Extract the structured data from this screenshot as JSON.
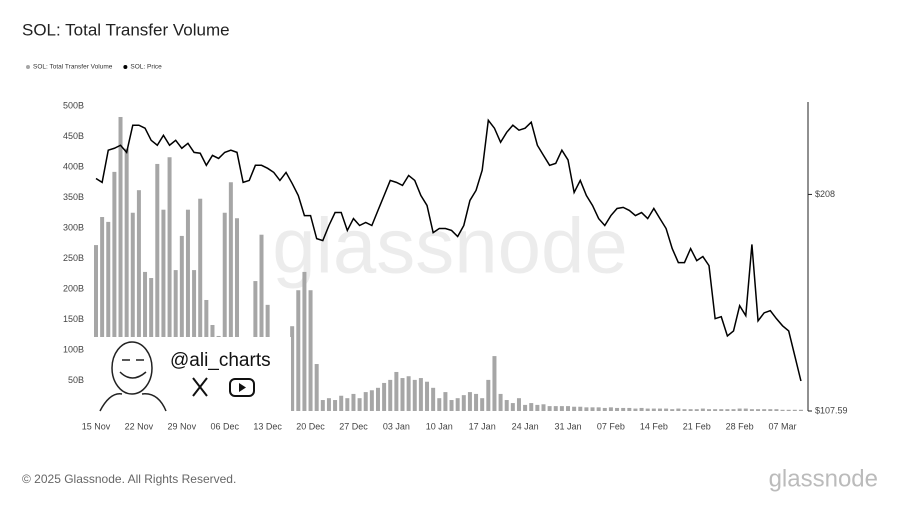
{
  "chart_data": {
    "type": "bar_line",
    "title": "SOL: Total Transfer Volume",
    "categories": [
      "15 Nov",
      null,
      null,
      null,
      null,
      null,
      null,
      "22 Nov",
      null,
      null,
      null,
      null,
      null,
      null,
      "29 Nov",
      null,
      null,
      null,
      null,
      null,
      null,
      "06 Dec",
      null,
      null,
      null,
      null,
      null,
      null,
      "13 Dec",
      null,
      null,
      null,
      null,
      null,
      null,
      "20 Dec",
      null,
      null,
      null,
      null,
      null,
      null,
      "27 Dec",
      null,
      null,
      null,
      null,
      null,
      null,
      "03 Jan",
      null,
      null,
      null,
      null,
      null,
      null,
      "10 Jan",
      null,
      null,
      null,
      null,
      null,
      null,
      "17 Jan",
      null,
      null,
      null,
      null,
      null,
      null,
      "24 Jan",
      null,
      null,
      null,
      null,
      null,
      null,
      "31 Jan",
      null,
      null,
      null,
      null,
      null,
      null,
      "07 Feb",
      null,
      null,
      null,
      null,
      null,
      null,
      "14 Feb",
      null,
      null,
      null,
      null,
      null,
      null,
      "21 Feb",
      null,
      null,
      null,
      null,
      null,
      null,
      "28 Feb",
      null,
      null,
      null,
      null,
      null,
      null,
      "07 Mar",
      null,
      null,
      null
    ],
    "series": [
      {
        "name": "SOL: Total Transfer Volume",
        "color": "#a6a6a6",
        "type": "bar",
        "values": [
          272,
          318,
          310,
          392,
          482,
          430,
          325,
          362,
          228,
          218,
          405,
          330,
          416,
          231,
          287,
          330,
          231,
          348,
          182,
          141,
          123,
          325,
          375,
          316,
          null,
          null,
          213,
          289,
          174,
          null,
          null,
          null,
          139,
          198,
          228,
          198,
          77,
          18,
          21,
          18,
          25,
          21,
          28,
          21,
          31,
          34,
          38,
          46,
          51,
          64,
          54,
          57,
          51,
          54,
          48,
          38,
          21,
          31,
          18,
          21,
          26,
          31,
          28,
          21,
          51,
          90,
          28,
          18,
          13,
          21,
          10,
          13,
          10,
          11,
          8,
          8,
          8,
          8,
          7,
          7,
          6,
          6,
          6,
          5,
          6,
          5,
          5,
          5,
          4,
          5,
          4,
          4,
          4,
          4,
          3,
          4,
          3,
          3,
          3,
          4,
          3,
          3,
          3,
          3,
          3,
          4,
          4,
          3,
          3,
          3,
          3,
          3,
          2,
          2,
          2,
          2
        ]
      },
      {
        "name": "SOL: Price",
        "color": "#000000",
        "type": "line",
        "axis": "y2",
        "values": [
          215.4,
          213.6,
          228.5,
          229.4,
          230.8,
          227.5,
          240.1,
          240.1,
          238.7,
          233.1,
          230.8,
          235.4,
          230.8,
          233.1,
          229.4,
          231.7,
          227.5,
          227.1,
          221.5,
          226.1,
          224.7,
          227.5,
          228.5,
          227.5,
          213.6,
          214.5,
          221.5,
          221.5,
          220.1,
          218.2,
          214.5,
          218.2,
          213.1,
          207.5,
          198.2,
          198.2,
          187.5,
          186.6,
          193.6,
          199.6,
          199.6,
          191.3,
          196.8,
          193.6,
          195.0,
          193.6,
          200.6,
          207.5,
          214.5,
          213.6,
          212.2,
          216.8,
          214.5,
          207.5,
          202.9,
          190.3,
          192.2,
          192.2,
          191.3,
          188.5,
          193.6,
          205.2,
          209.9,
          219.2,
          242.4,
          238.7,
          232.2,
          236.8,
          240.1,
          237.8,
          238.7,
          241.5,
          230.8,
          226.1,
          221.5,
          222.4,
          228.5,
          224.0,
          208.9,
          214.5,
          207.5,
          202.9,
          196.8,
          193.6,
          198.2,
          201.5,
          202.0,
          200.6,
          198.2,
          199.6,
          196.8,
          201.5,
          196.8,
          192.2,
          182.9,
          176.4,
          176.4,
          182.9,
          177.3,
          179.2,
          175.0,
          150.4,
          151.3,
          142.4,
          144.7,
          156.4,
          151.8,
          184.8,
          149.4,
          153.1,
          154.1,
          150.4,
          147.1,
          144.7,
          133.1,
          121.5
        ]
      }
    ],
    "ylim": [
      0,
      500
    ],
    "yticks": [
      {
        "value": 50,
        "label": "50B"
      },
      {
        "value": 100,
        "label": "100B"
      },
      {
        "value": 150,
        "label": "150B"
      },
      {
        "value": 200,
        "label": "200B"
      },
      {
        "value": 250,
        "label": "250B"
      },
      {
        "value": 300,
        "label": "300B"
      },
      {
        "value": 350,
        "label": "350B"
      },
      {
        "value": 400,
        "label": "400B"
      },
      {
        "value": 450,
        "label": "450B"
      },
      {
        "value": 500,
        "label": "500B"
      }
    ],
    "y2lim": [
      107.59,
      249
    ],
    "y2ticks": [
      {
        "value": 107.59,
        "label": "$107.59"
      },
      {
        "value": 208,
        "label": "$208"
      }
    ],
    "grid": false,
    "legend": "top-left",
    "watermark": "glassnode",
    "overlay_handle": "@ali_charts"
  },
  "footer": {
    "copyright": "© 2025 Glassnode. All Rights Reserved.",
    "logo": "glassnode"
  }
}
